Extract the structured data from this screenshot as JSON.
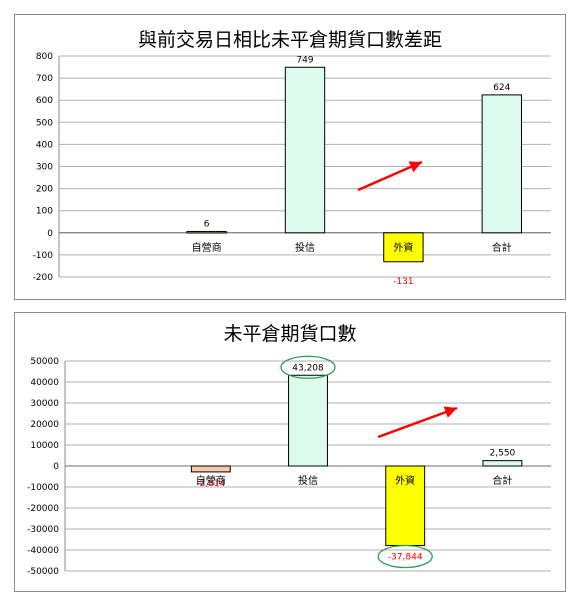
{
  "chart_data": [
    {
      "type": "bar",
      "title": "與前交易日相比未平倉期貨口數差距",
      "categories": [
        "",
        "自營商",
        "投信",
        "外資",
        "合計"
      ],
      "values": [
        null,
        6,
        749,
        -131,
        624
      ],
      "data_labels": [
        "",
        "6",
        "749",
        "-131",
        "624"
      ],
      "ylim": [
        -200,
        800
      ],
      "yticks": [
        -200,
        -100,
        0,
        100,
        200,
        300,
        400,
        500,
        600,
        700,
        800
      ],
      "grid": true,
      "legend": "none",
      "colors": [
        "#ffffff",
        "#c4bd97",
        "#ddfaef",
        "#ffff00",
        "#ddfaef"
      ],
      "label_colors": [
        "#000000",
        "#000000",
        "#000000",
        "#ff0000",
        "#000000"
      ],
      "highlight_category": "外資",
      "arrow_color": "#ff0000"
    },
    {
      "type": "bar",
      "title": "未平倉期貨口數",
      "categories": [
        "",
        "自營商",
        "投信",
        "外資",
        "合計"
      ],
      "values": [
        null,
        -2814,
        43208,
        -37844,
        2550
      ],
      "data_labels": [
        "",
        "-2,814",
        "43,208",
        "-37,844",
        "2,550"
      ],
      "ylim": [
        -50000,
        50000
      ],
      "yticks": [
        -50000,
        -40000,
        -30000,
        -20000,
        -10000,
        0,
        10000,
        20000,
        30000,
        40000,
        50000
      ],
      "grid": true,
      "legend": "none",
      "colors": [
        "#ffffff",
        "#fac8a8",
        "#ddfaef",
        "#ffff00",
        "#ddfaef"
      ],
      "label_colors": [
        "#000000",
        "#ff0000",
        "#000000",
        "#ff0000",
        "#000000"
      ],
      "circled_labels": [
        "43,208",
        "-37,844"
      ],
      "circle_color": "#2e9e4f",
      "arrow_color": "#ff0000"
    }
  ]
}
